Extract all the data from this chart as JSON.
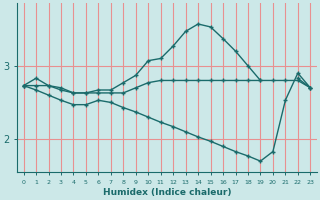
{
  "xlabel": "Humidex (Indice chaleur)",
  "bg_color": "#cce8e8",
  "grid_color": "#e89090",
  "line_color": "#1a6b6b",
  "xlim": [
    -0.5,
    23.5
  ],
  "ylim": [
    1.55,
    3.85
  ],
  "yticks": [
    2,
    3
  ],
  "xticks": [
    0,
    1,
    2,
    3,
    4,
    5,
    6,
    7,
    8,
    9,
    10,
    11,
    12,
    13,
    14,
    15,
    16,
    17,
    18,
    19,
    20,
    21,
    22,
    23
  ],
  "series": [
    {
      "segments": [
        {
          "x": [
            0,
            1,
            2,
            3,
            4,
            5,
            6,
            7,
            8,
            9,
            10,
            11,
            12,
            13,
            14,
            15,
            16,
            17,
            18,
            19
          ],
          "y": [
            2.73,
            2.83,
            2.73,
            2.67,
            2.63,
            2.63,
            2.67,
            2.67,
            2.77,
            2.87,
            3.07,
            3.1,
            3.27,
            3.47,
            3.57,
            3.53,
            3.37,
            3.2,
            3.0,
            2.8
          ]
        },
        {
          "x": [
            22,
            23
          ],
          "y": [
            2.83,
            2.7
          ]
        }
      ]
    },
    {
      "segments": [
        {
          "x": [
            0,
            1,
            2,
            3,
            4,
            5,
            6,
            7,
            8,
            9,
            10,
            11,
            12,
            13,
            14,
            15,
            16,
            17,
            18,
            19,
            20,
            21,
            22,
            23
          ],
          "y": [
            2.73,
            2.73,
            2.73,
            2.7,
            2.63,
            2.63,
            2.63,
            2.63,
            2.63,
            2.7,
            2.77,
            2.8,
            2.8,
            2.8,
            2.8,
            2.8,
            2.8,
            2.8,
            2.8,
            2.8,
            2.8,
            2.8,
            2.8,
            2.7
          ]
        }
      ]
    },
    {
      "segments": [
        {
          "x": [
            0,
            1,
            2,
            3,
            4,
            5,
            6,
            7,
            8,
            9,
            10,
            11,
            12,
            13,
            14,
            15,
            16,
            17,
            18,
            19,
            20,
            21,
            22,
            23
          ],
          "y": [
            2.73,
            2.67,
            2.6,
            2.53,
            2.47,
            2.47,
            2.53,
            2.5,
            2.43,
            2.37,
            2.3,
            2.23,
            2.17,
            2.1,
            2.03,
            1.97,
            1.9,
            1.83,
            1.77,
            1.7,
            1.83,
            2.53,
            2.9,
            2.7
          ]
        }
      ]
    }
  ]
}
